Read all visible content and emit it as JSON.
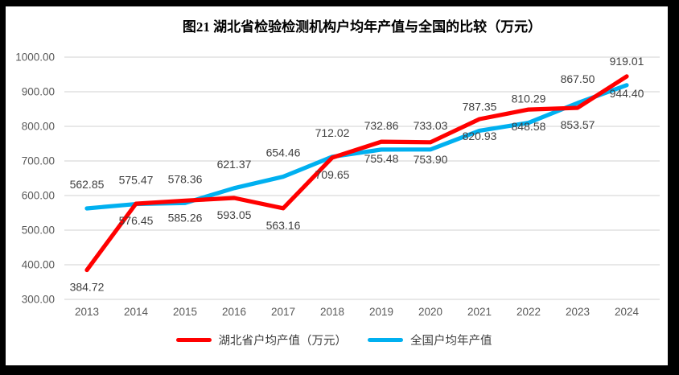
{
  "title": "图21  湖北省检验检测机构户均年产值与全国的比较（万元）",
  "colors": {
    "frame": "#000000",
    "background": "#FFFFFF",
    "gridline": "#D9D9D9",
    "axis_text": "#595959",
    "label_text": "#404040",
    "hubei_red": "#FF0000",
    "national_blue": "#00B0F0"
  },
  "chart_data": {
    "type": "line",
    "title": "图21  湖北省检验检测机构户均年产值与全国的比较（万元）",
    "x": [
      "2013",
      "2014",
      "2015",
      "2016",
      "2017",
      "2018",
      "2019",
      "2020",
      "2021",
      "2022",
      "2023",
      "2024"
    ],
    "series": [
      {
        "key": "hubei",
        "name": "湖北省户均产值（万元）",
        "color": "#FF0000",
        "label_position": "below",
        "values": [
          384.72,
          576.45,
          585.26,
          593.05,
          563.16,
          709.65,
          755.48,
          753.9,
          820.93,
          848.58,
          853.57,
          944.4
        ]
      },
      {
        "key": "national",
        "name": "全国户均年产值",
        "color": "#00B0F0",
        "label_position": "above",
        "values": [
          562.85,
          575.47,
          578.36,
          621.37,
          654.46,
          712.02,
          732.86,
          733.03,
          787.35,
          810.29,
          867.5,
          919.01
        ]
      }
    ],
    "ylim": [
      300,
      1000
    ],
    "y_ticks": [
      "300.00",
      "400.00",
      "500.00",
      "600.00",
      "700.00",
      "800.00",
      "900.00",
      "1000.00"
    ],
    "grid": true,
    "legend_position": "bottom",
    "data_labels": true
  }
}
